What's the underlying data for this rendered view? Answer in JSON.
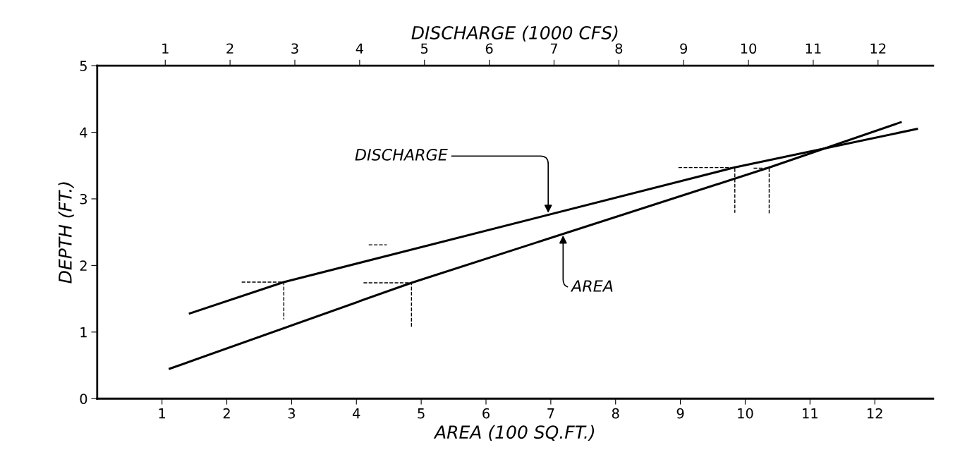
{
  "chart_data": {
    "type": "line",
    "xlabel": "AREA (100 SQ.FT.)",
    "x2label": "DISCHARGE (1000 CFS)",
    "ylabel": "DEPTH (FT.)",
    "xlim": [
      0,
      12.9
    ],
    "xticks": [
      1,
      2,
      3,
      4,
      5,
      6,
      7,
      8,
      9,
      10,
      11,
      12
    ],
    "x2lim": [
      -0.05,
      12.85
    ],
    "x2ticks": [
      1,
      2,
      3,
      4,
      5,
      6,
      7,
      8,
      9,
      10,
      11,
      12
    ],
    "ylim": [
      0,
      5
    ],
    "yticks": [
      0,
      1,
      2,
      3,
      4,
      5
    ],
    "grid": false,
    "marker": "none",
    "series": [
      {
        "color": "#000000",
        "axis": "x2",
        "x": [
          1.38,
          2.83,
          9.78,
          12.6
        ],
        "values": [
          1.28,
          1.75,
          3.47,
          4.05
        ]
      },
      {
        "color": "#000000",
        "x": [
          1.12,
          4.85,
          10.37,
          12.4
        ],
        "values": [
          0.45,
          1.74,
          3.47,
          4.15
        ]
      },
      {
        "color": "#000000",
        "line_style": "dashed",
        "x": [
          2.23,
          2.88,
          2.88
        ],
        "values": [
          1.75,
          1.75,
          1.19
        ]
      },
      {
        "color": "#000000",
        "line_style": "dashed",
        "x": [
          4.11,
          4.85,
          4.85
        ],
        "values": [
          1.74,
          1.74,
          1.06
        ]
      },
      {
        "color": "#000000",
        "line_style": "dashed",
        "x": [
          4.19,
          4.47
        ],
        "values": [
          2.31,
          2.31
        ]
      },
      {
        "color": "#000000",
        "line_style": "dashed",
        "x": [
          8.97,
          9.84,
          9.84
        ],
        "values": [
          3.47,
          3.47,
          2.79
        ]
      },
      {
        "color": "#000000",
        "line_style": "dashed",
        "x": [
          10.13,
          10.37,
          10.37
        ],
        "values": [
          3.46,
          3.46,
          2.76
        ]
      }
    ],
    "annotations": [
      {
        "text": "DISCHARGE",
        "x": 6.96,
        "y": 2.76
      },
      {
        "text": "AREA",
        "x": 7.19,
        "y": 2.48
      }
    ]
  }
}
